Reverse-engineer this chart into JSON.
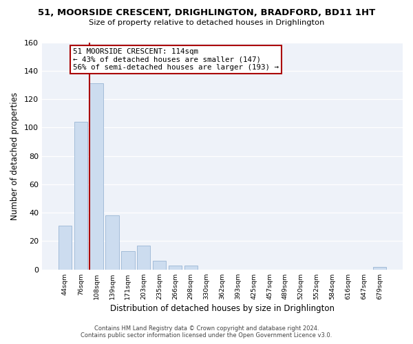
{
  "title": "51, MOORSIDE CRESCENT, DRIGHLINGTON, BRADFORD, BD11 1HT",
  "subtitle": "Size of property relative to detached houses in Drighlington",
  "xlabel": "Distribution of detached houses by size in Drighlington",
  "ylabel": "Number of detached properties",
  "bin_labels": [
    "44sqm",
    "76sqm",
    "108sqm",
    "139sqm",
    "171sqm",
    "203sqm",
    "235sqm",
    "266sqm",
    "298sqm",
    "330sqm",
    "362sqm",
    "393sqm",
    "425sqm",
    "457sqm",
    "489sqm",
    "520sqm",
    "552sqm",
    "584sqm",
    "616sqm",
    "647sqm",
    "679sqm"
  ],
  "bar_values": [
    31,
    104,
    131,
    38,
    13,
    17,
    6,
    3,
    3,
    0,
    0,
    0,
    0,
    0,
    0,
    0,
    0,
    0,
    0,
    0,
    2
  ],
  "bar_color": "#ccdcef",
  "bar_edge_color": "#9ab6d4",
  "ylim": [
    0,
    160
  ],
  "yticks": [
    0,
    20,
    40,
    60,
    80,
    100,
    120,
    140,
    160
  ],
  "property_line_bar_index": 2,
  "property_line_color": "#aa0000",
  "annotation_title": "51 MOORSIDE CRESCENT: 114sqm",
  "annotation_line1": "← 43% of detached houses are smaller (147)",
  "annotation_line2": "56% of semi-detached houses are larger (193) →",
  "footer_line1": "Contains HM Land Registry data © Crown copyright and database right 2024.",
  "footer_line2": "Contains public sector information licensed under the Open Government Licence v3.0.",
  "background_color": "#eef2f9",
  "grid_color": "#ffffff",
  "fig_width": 6.0,
  "fig_height": 5.0,
  "dpi": 100
}
